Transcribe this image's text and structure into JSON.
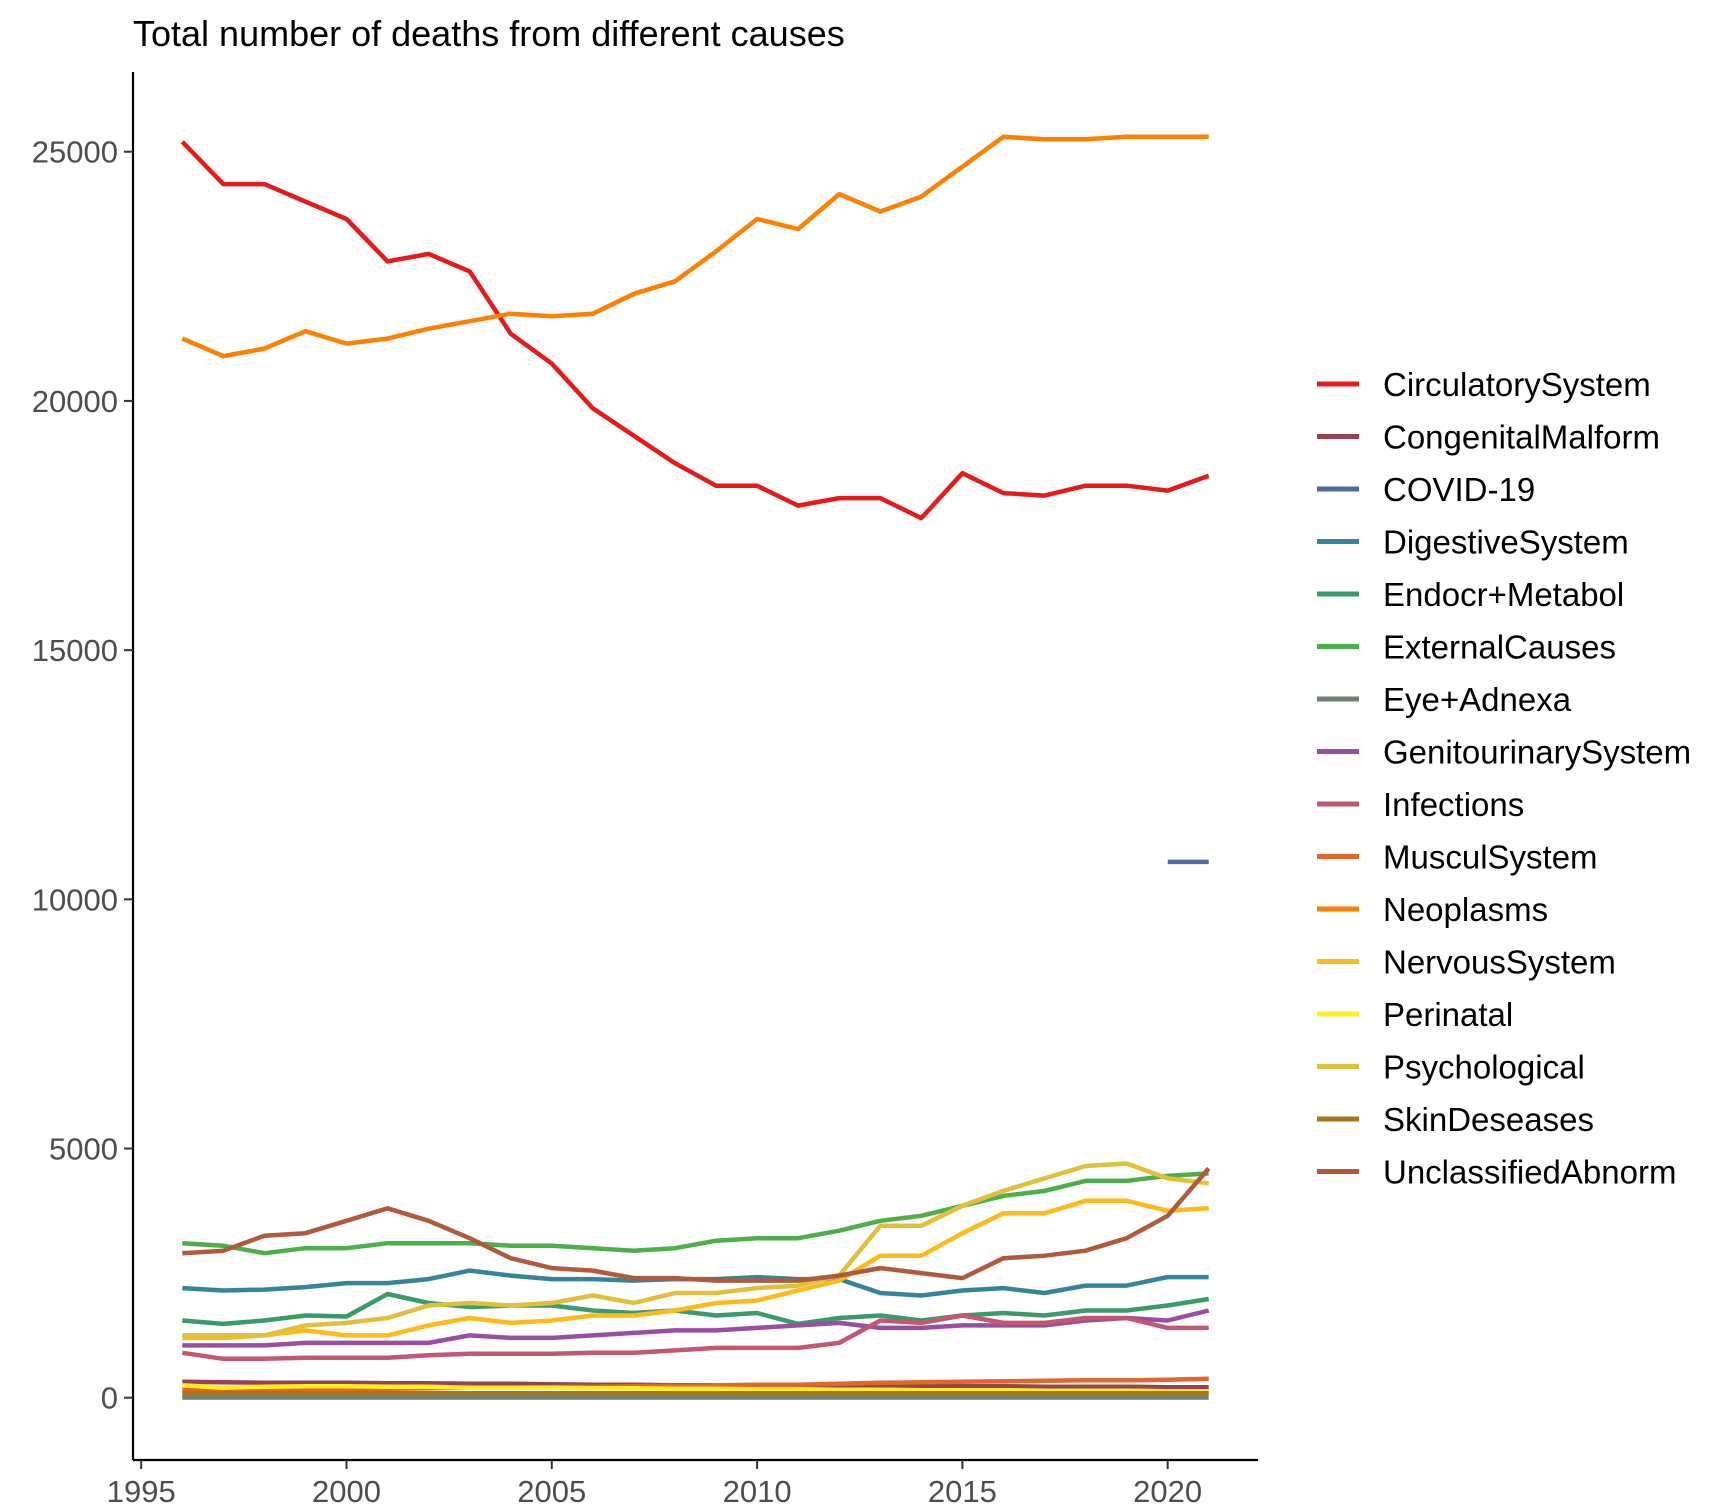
{
  "chart_data": {
    "type": "line",
    "title": "Total number of deaths from different causes",
    "xlabel": "",
    "ylabel": "",
    "xlim": [
      1994.8,
      2022.2
    ],
    "ylim": [
      -1250,
      26600
    ],
    "x_ticks": [
      1995,
      2000,
      2005,
      2010,
      2015,
      2020
    ],
    "y_ticks": [
      0,
      5000,
      10000,
      15000,
      20000,
      25000
    ],
    "grid": false,
    "legend_position": "right",
    "x": [
      1996,
      1997,
      1998,
      1999,
      2000,
      2001,
      2002,
      2003,
      2004,
      2005,
      2006,
      2007,
      2008,
      2009,
      2010,
      2011,
      2012,
      2013,
      2014,
      2015,
      2016,
      2017,
      2018,
      2019,
      2020,
      2021
    ],
    "series": [
      {
        "name": "CirculatorySystem",
        "color": "#e41a1c",
        "values": [
          25200,
          24350,
          24350,
          24000,
          23650,
          22800,
          22950,
          22600,
          21350,
          20750,
          19850,
          19300,
          18750,
          18300,
          18300,
          17900,
          18050,
          18050,
          17650,
          18550,
          18150,
          18100,
          18300,
          18300,
          18200,
          18500
        ]
      },
      {
        "name": "CongenitalMalform",
        "color": "#984150",
        "values": [
          320,
          310,
          300,
          300,
          300,
          290,
          290,
          280,
          280,
          270,
          260,
          260,
          250,
          250,
          250,
          240,
          240,
          240,
          230,
          230,
          230,
          220,
          220,
          220,
          210,
          210
        ]
      },
      {
        "name": "COVID-19",
        "color": "#50699e",
        "values": [
          null,
          null,
          null,
          null,
          null,
          null,
          null,
          null,
          null,
          null,
          null,
          null,
          null,
          null,
          null,
          null,
          null,
          null,
          null,
          null,
          null,
          null,
          null,
          null,
          10750,
          10750
        ]
      },
      {
        "name": "DigestiveSystem",
        "color": "#35859a",
        "values": [
          2200,
          2150,
          2170,
          2220,
          2300,
          2300,
          2380,
          2550,
          2450,
          2380,
          2380,
          2350,
          2380,
          2380,
          2420,
          2380,
          2380,
          2100,
          2050,
          2150,
          2200,
          2100,
          2250,
          2250,
          2420,
          2420
        ]
      },
      {
        "name": "Endocr+Metabol",
        "color": "#3a9a6a",
        "values": [
          1550,
          1480,
          1550,
          1650,
          1630,
          2080,
          1900,
          1820,
          1850,
          1850,
          1750,
          1700,
          1750,
          1650,
          1700,
          1480,
          1600,
          1650,
          1550,
          1650,
          1700,
          1650,
          1750,
          1750,
          1850,
          1980
        ]
      },
      {
        "name": "ExternalCauses",
        "color": "#4daf4a",
        "values": [
          3100,
          3050,
          2900,
          3000,
          3000,
          3100,
          3100,
          3100,
          3050,
          3050,
          3000,
          2950,
          3000,
          3150,
          3200,
          3200,
          3350,
          3550,
          3650,
          3850,
          4050,
          4150,
          4350,
          4350,
          4450,
          4500
        ]
      },
      {
        "name": "Eye+Adnexa",
        "color": "#737f73",
        "values": [
          5,
          5,
          5,
          5,
          5,
          5,
          5,
          5,
          5,
          5,
          5,
          5,
          5,
          5,
          5,
          5,
          5,
          5,
          5,
          5,
          5,
          5,
          5,
          5,
          5,
          5
        ]
      },
      {
        "name": "GenitourinarySystem",
        "color": "#984ea3",
        "values": [
          1050,
          1050,
          1050,
          1100,
          1100,
          1100,
          1100,
          1250,
          1200,
          1200,
          1250,
          1300,
          1350,
          1350,
          1400,
          1450,
          1500,
          1400,
          1400,
          1450,
          1450,
          1450,
          1550,
          1600,
          1550,
          1750
        ]
      },
      {
        "name": "Infections",
        "color": "#c15771",
        "values": [
          900,
          780,
          780,
          800,
          800,
          800,
          850,
          880,
          880,
          880,
          900,
          900,
          950,
          1000,
          1000,
          1000,
          1100,
          1550,
          1500,
          1650,
          1500,
          1500,
          1600,
          1600,
          1400,
          1400
        ]
      },
      {
        "name": "MusculSystem",
        "color": "#e2652a",
        "values": [
          160,
          150,
          160,
          170,
          180,
          180,
          190,
          200,
          200,
          210,
          220,
          230,
          240,
          250,
          260,
          260,
          280,
          300,
          310,
          320,
          330,
          340,
          350,
          350,
          360,
          380
        ]
      },
      {
        "name": "Neoplasms",
        "color": "#ff7f00",
        "values": [
          21250,
          20900,
          21050,
          21400,
          21150,
          21250,
          21450,
          21600,
          21750,
          21700,
          21750,
          22150,
          22400,
          23000,
          23650,
          23450,
          24150,
          23800,
          24100,
          24700,
          25300,
          25250,
          25250,
          25300,
          25300,
          25300
        ]
      },
      {
        "name": "NervousSystem",
        "color": "#fdba1a",
        "values": [
          1200,
          1200,
          1250,
          1350,
          1250,
          1250,
          1450,
          1600,
          1500,
          1550,
          1650,
          1650,
          1750,
          1900,
          1950,
          2150,
          2350,
          2850,
          2850,
          3300,
          3700,
          3700,
          3950,
          3950,
          3750,
          3800
        ]
      },
      {
        "name": "Perinatal",
        "color": "#ffee24",
        "values": [
          250,
          200,
          220,
          230,
          230,
          220,
          220,
          200,
          200,
          200,
          190,
          190,
          180,
          180,
          170,
          170,
          160,
          160,
          150,
          150,
          150,
          140,
          140,
          140,
          130,
          130
        ]
      },
      {
        "name": "Psychological",
        "color": "#e0c03a",
        "values": [
          1250,
          1250,
          1250,
          1450,
          1500,
          1600,
          1850,
          1900,
          1850,
          1900,
          2050,
          1900,
          2100,
          2100,
          2200,
          2250,
          2450,
          3450,
          3450,
          3850,
          4150,
          4400,
          4650,
          4700,
          4400,
          4300
        ]
      },
      {
        "name": "SkinDeseases",
        "color": "#a6761d",
        "values": [
          90,
          90,
          90,
          90,
          90,
          90,
          90,
          90,
          90,
          90,
          90,
          90,
          90,
          90,
          90,
          90,
          90,
          90,
          90,
          90,
          90,
          90,
          90,
          90,
          90,
          90
        ]
      },
      {
        "name": "UnclassifiedAbnorm",
        "color": "#b05a3c",
        "values": [
          2900,
          2950,
          3250,
          3300,
          3550,
          3800,
          3550,
          3200,
          2800,
          2600,
          2550,
          2400,
          2400,
          2350,
          2350,
          2350,
          2450,
          2600,
          2500,
          2400,
          2800,
          2850,
          2950,
          3200,
          3650,
          4600
        ]
      }
    ]
  }
}
